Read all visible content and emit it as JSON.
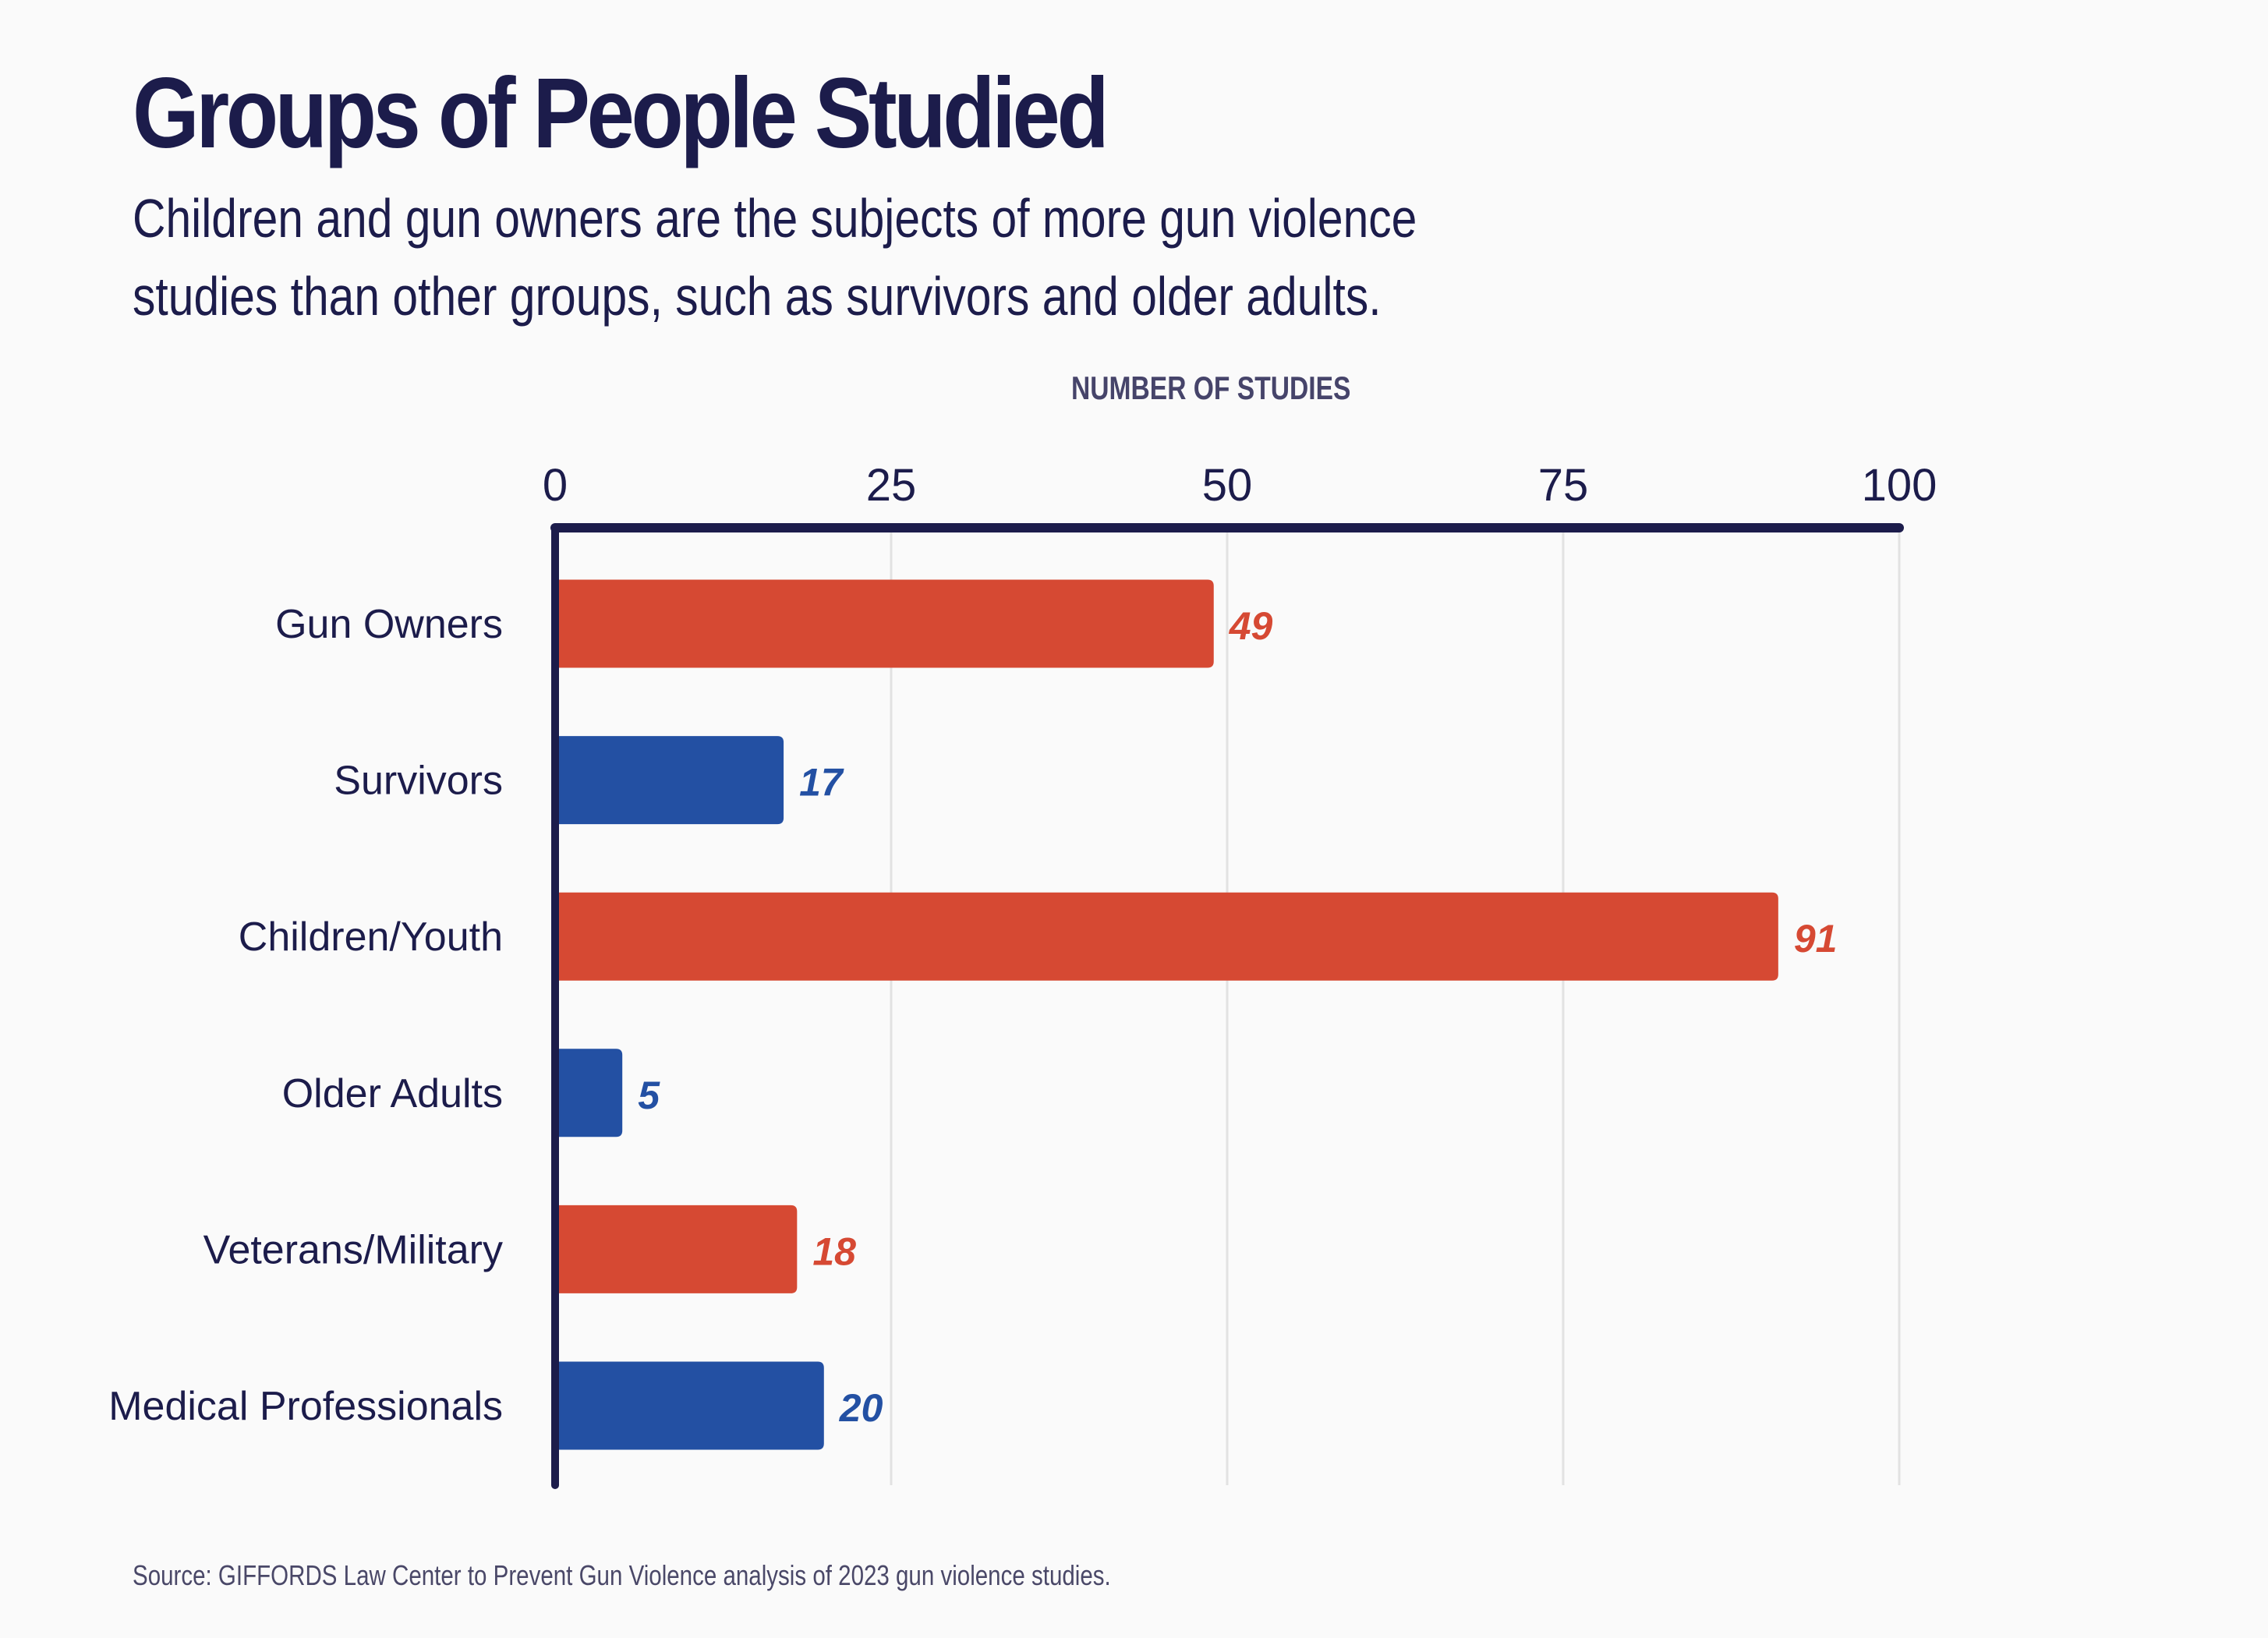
{
  "chart_data": {
    "type": "bar",
    "orientation": "horizontal",
    "title": "Groups of People Studied",
    "subtitle_lines": [
      "Children and gun owners are the subjects of more gun violence",
      "studies than other groups, such as survivors and older adults."
    ],
    "xlabel": "NUMBER OF STUDIES",
    "ylabel": "",
    "xlim": [
      0,
      100
    ],
    "x_ticks": [
      0,
      25,
      50,
      75,
      100
    ],
    "grid": true,
    "axis_position": "top",
    "categories": [
      "Gun Owners",
      "Survivors",
      "Children/Youth",
      "Older Adults",
      "Veterans/Military",
      "Medical Professionals"
    ],
    "values": [
      49,
      17,
      91,
      5,
      18,
      20
    ],
    "bar_colors": [
      "#d64933",
      "#2350a3",
      "#d64933",
      "#2350a3",
      "#d64933",
      "#2350a3"
    ],
    "data_labels": [
      "49",
      "17",
      "91",
      "5",
      "18",
      "20"
    ],
    "source": "Source: GIFFORDS Law Center to Prevent Gun Violence analysis of 2023 gun violence studies."
  },
  "colors": {
    "text": "#1c1c4b",
    "axis": "#1c1c4b",
    "grid": "#e2e2e2",
    "background": "#fafafa"
  }
}
